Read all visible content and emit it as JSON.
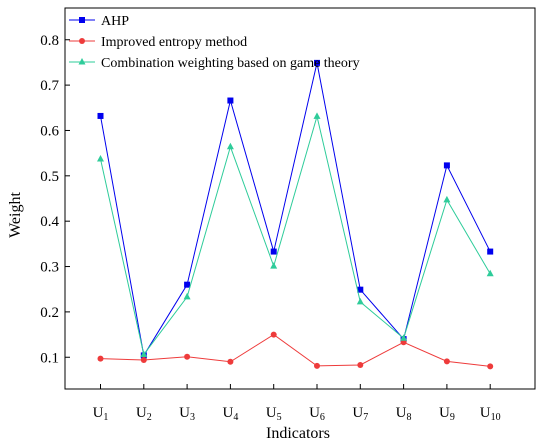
{
  "chart_data": {
    "type": "line",
    "title": "",
    "xlabel": "Indicators",
    "ylabel": "Weight",
    "categories": [
      {
        "base": "U",
        "sub": "1"
      },
      {
        "base": "U",
        "sub": "2"
      },
      {
        "base": "U",
        "sub": "3"
      },
      {
        "base": "U",
        "sub": "4"
      },
      {
        "base": "U",
        "sub": "5"
      },
      {
        "base": "U",
        "sub": "6"
      },
      {
        "base": "U",
        "sub": "7"
      },
      {
        "base": "U",
        "sub": "8"
      },
      {
        "base": "U",
        "sub": "9"
      },
      {
        "base": "U",
        "sub": "10"
      }
    ],
    "ylim": [
      0.03,
      0.87
    ],
    "yticks": [
      0.1,
      0.2,
      0.3,
      0.4,
      0.5,
      0.6,
      0.7,
      0.8
    ],
    "ytick_labels": [
      "0.1",
      "0.2",
      "0.3",
      "0.4",
      "0.5",
      "0.6",
      "0.7",
      "0.8"
    ],
    "grid": false,
    "legend_position": "top-left",
    "series": [
      {
        "name": "AHP",
        "color": "#0000ee",
        "marker": "square",
        "values": [
          0.632,
          0.104,
          0.26,
          0.666,
          0.333,
          0.749,
          0.249,
          0.14,
          0.523,
          0.333
        ]
      },
      {
        "name": "Improved entropy method",
        "color": "#ee3b3b",
        "marker": "circle",
        "values": [
          0.097,
          0.094,
          0.101,
          0.09,
          0.15,
          0.081,
          0.083,
          0.133,
          0.091,
          0.08
        ]
      },
      {
        "name": "Combination weighting based on game theory",
        "color": "#2ecc9a",
        "marker": "triangle",
        "values": [
          0.537,
          0.106,
          0.233,
          0.564,
          0.301,
          0.631,
          0.222,
          0.142,
          0.447,
          0.284
        ]
      }
    ]
  }
}
